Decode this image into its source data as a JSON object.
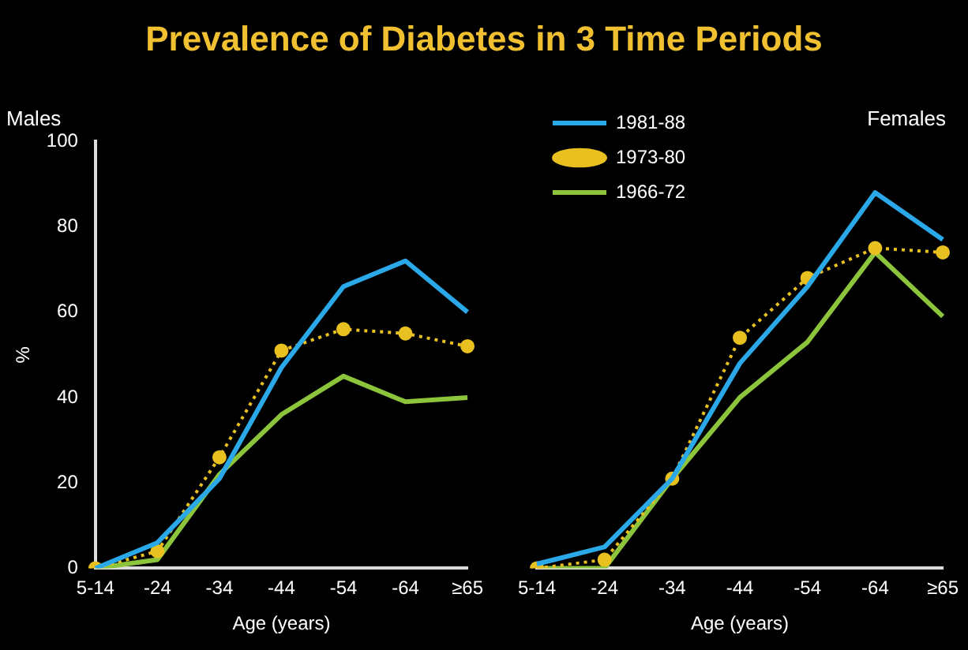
{
  "chart_data": [
    {
      "type": "line",
      "title": "Prevalence of Diabetes in 3 Time Periods",
      "subtitle": "Males",
      "xlabel": "Age (years)",
      "ylabel": "%",
      "categories": [
        "5-14",
        "-24",
        "-34",
        "-44",
        "-54",
        "-64",
        "≥65"
      ],
      "ylim": [
        0,
        100
      ],
      "yticks": [
        0,
        20,
        40,
        60,
        80,
        100
      ],
      "grid": false,
      "legend": false,
      "marker": "none",
      "series": [
        {
          "color": "#2aa8e8",
          "values": [
            0,
            6,
            21,
            47,
            66,
            72,
            60
          ]
        },
        {
          "color": "#e8c020",
          "values": [
            0,
            4,
            26,
            51,
            56,
            55,
            52
          ],
          "marker": "circle",
          "line_style": "dotted"
        },
        {
          "color": "#8cc43c",
          "values": [
            0,
            2,
            22,
            36,
            45,
            39,
            40
          ]
        }
      ]
    },
    {
      "type": "line",
      "subtitle": "Females",
      "xlabel": "Age (years)",
      "categories": [
        "5-14",
        "-24",
        "-34",
        "-44",
        "-54",
        "-64",
        "≥65"
      ],
      "ylim": [
        0,
        100
      ],
      "tick_labels": "x",
      "grid": false,
      "legend": "top left",
      "marker": "none",
      "series": [
        {
          "name": "1981-88",
          "color": "#2aa8e8",
          "values": [
            1,
            5,
            21,
            48,
            66,
            88,
            77
          ]
        },
        {
          "name": "1973-80",
          "color": "#e8c020",
          "values": [
            0,
            2,
            21,
            54,
            68,
            75,
            74
          ],
          "marker": "circle",
          "line_style": "dotted"
        },
        {
          "name": "1966-72",
          "color": "#8cc43c",
          "values": [
            0,
            0,
            21,
            40,
            53,
            74,
            59
          ]
        }
      ]
    }
  ]
}
